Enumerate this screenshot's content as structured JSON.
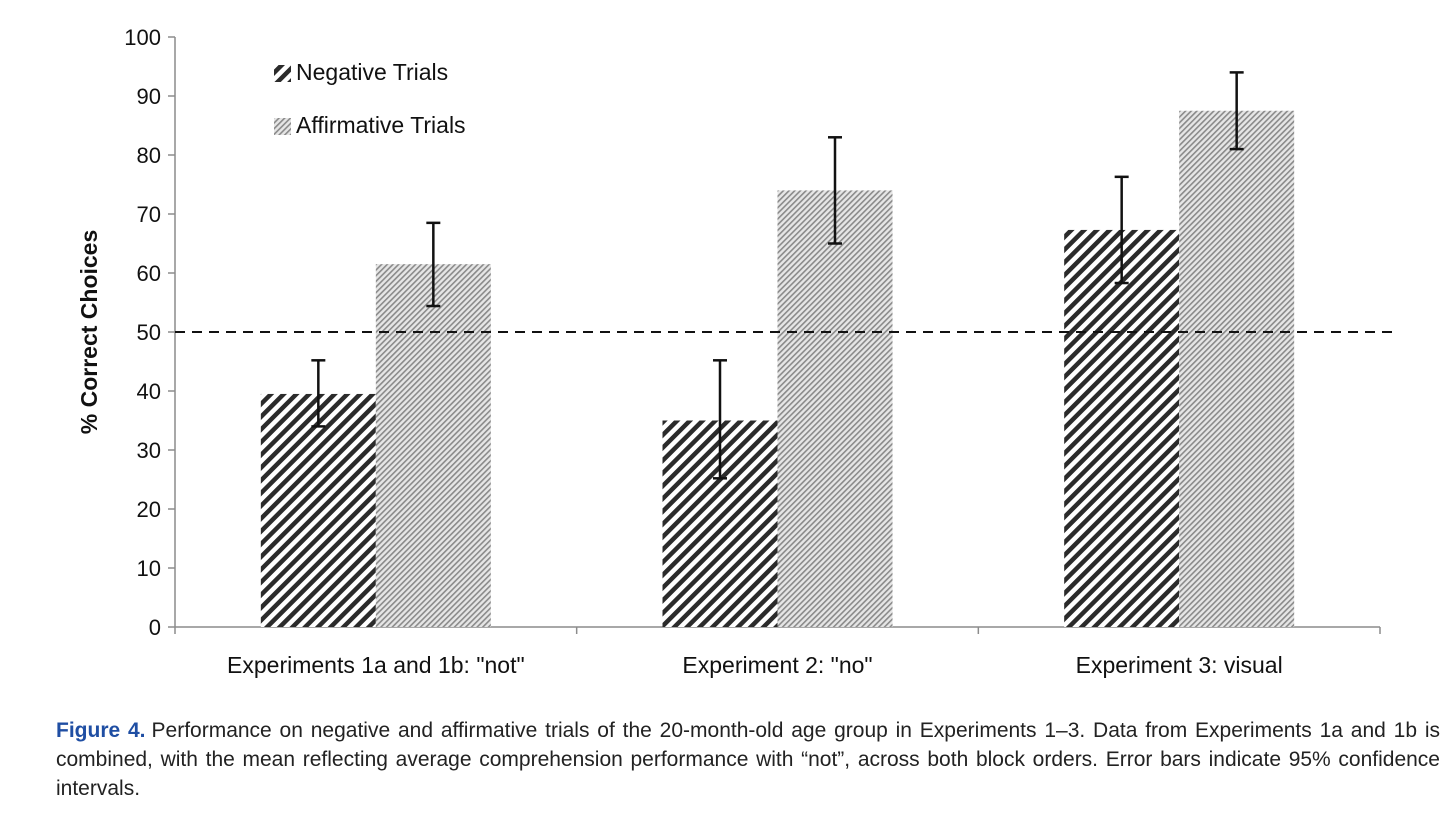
{
  "chart_data": {
    "type": "bar",
    "categories": [
      "Experiments 1a and 1b: \"not\"",
      "Experiment 2: \"no\"",
      "Experiment 3: visual"
    ],
    "series": [
      {
        "name": "Negative Trials",
        "values": [
          39.5,
          35,
          67.3
        ],
        "ci_low": [
          34,
          25.2,
          58.3
        ],
        "ci_high": [
          45.2,
          45.2,
          76.3
        ],
        "pattern": "dense-diagonal"
      },
      {
        "name": "Affirmative Trials",
        "values": [
          61.5,
          74,
          87.5
        ],
        "ci_low": [
          54.4,
          65,
          81
        ],
        "ci_high": [
          68.5,
          83,
          94
        ],
        "pattern": "fine-diagonal"
      }
    ],
    "ylabel": "% Correct Choices",
    "xlabel": "",
    "ylim": [
      0,
      100
    ],
    "yticks": [
      0,
      10,
      20,
      30,
      40,
      50,
      60,
      70,
      80,
      90,
      100
    ],
    "reference_line": {
      "y": 50,
      "style": "dashed"
    },
    "legend_position": "top-left",
    "grid": false
  },
  "caption": {
    "label": "Figure 4.",
    "text": "Performance on negative and affirmative trials of the 20-month-old age group in Experiments 1–3. Data from Experiments 1a and 1b is combined, with the mean reflecting average comprehension performance with “not”, across both block orders. Error bars indicate 95% confidence intervals."
  }
}
